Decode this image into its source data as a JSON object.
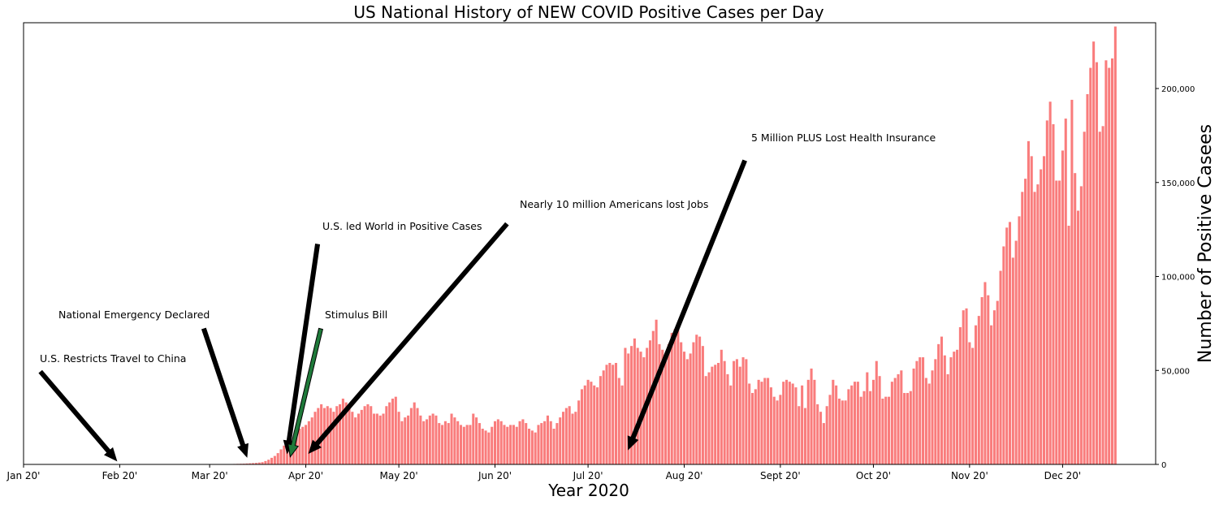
{
  "chart_data": {
    "type": "bar",
    "title": "US National History of NEW COVID Positive Cases per Day",
    "xlabel": "Year 2020",
    "ylabel": "Number of Positive Casees",
    "x_axis": {
      "type": "date",
      "ticks": [
        {
          "date": "2020-01-01",
          "label": "Jan 20'"
        },
        {
          "date": "2020-02-01",
          "label": "Feb 20'"
        },
        {
          "date": "2020-03-01",
          "label": "Mar 20'"
        },
        {
          "date": "2020-04-01",
          "label": "Apr 20'"
        },
        {
          "date": "2020-05-01",
          "label": "May 20'"
        },
        {
          "date": "2020-06-01",
          "label": "Jun 20'"
        },
        {
          "date": "2020-07-01",
          "label": "Jul 20'"
        },
        {
          "date": "2020-08-01",
          "label": "Aug 20'"
        },
        {
          "date": "2020-09-01",
          "label": "Sept 20'"
        },
        {
          "date": "2020-10-01",
          "label": "Oct 20'"
        },
        {
          "date": "2020-11-01",
          "label": "Nov 20'"
        },
        {
          "date": "2020-12-01",
          "label": "Dec 20'"
        }
      ]
    },
    "y_axis": {
      "position": "right",
      "ylim": [
        0,
        235000
      ],
      "ticks": [
        {
          "value": 0,
          "label": "0"
        },
        {
          "value": 50000,
          "label": "50,000"
        },
        {
          "value": 100000,
          "label": "100,000"
        },
        {
          "value": 150000,
          "label": "150,000"
        },
        {
          "value": 200000,
          "label": "200,000"
        }
      ]
    },
    "grid": false,
    "bar_color": "#f97c7c",
    "series": [
      {
        "name": "",
        "start_date": "2020-03-01",
        "values": [
          30,
          40,
          60,
          80,
          100,
          120,
          150,
          200,
          250,
          300,
          350,
          400,
          500,
          600,
          700,
          800,
          1000,
          1200,
          1800,
          2500,
          3500,
          4500,
          6000,
          8000,
          10000,
          11000,
          12000,
          13000,
          17000,
          19000,
          20000,
          21000,
          23000,
          25000,
          28000,
          30000,
          32000,
          30000,
          31000,
          30000,
          28000,
          31000,
          32000,
          35000,
          33000,
          30000,
          28000,
          25000,
          27000,
          29000,
          31000,
          32000,
          31000,
          27000,
          27000,
          26000,
          27000,
          31000,
          33000,
          35000,
          36000,
          28000,
          23000,
          25000,
          26000,
          30000,
          33000,
          30000,
          26000,
          23000,
          24000,
          26000,
          27000,
          26000,
          22000,
          21000,
          23000,
          22000,
          27000,
          25000,
          23000,
          21000,
          20000,
          21000,
          21000,
          27000,
          25000,
          22000,
          19000,
          18000,
          17000,
          20000,
          23000,
          24000,
          23000,
          21000,
          20000,
          21000,
          21000,
          20000,
          23000,
          24000,
          22000,
          19000,
          18000,
          17000,
          21000,
          22000,
          23000,
          26000,
          23000,
          19000,
          22000,
          25000,
          28000,
          30000,
          31000,
          27000,
          28000,
          34000,
          40000,
          42000,
          45000,
          44000,
          42000,
          41000,
          47000,
          50000,
          53000,
          54000,
          53000,
          54000,
          46000,
          42000,
          62000,
          59000,
          63000,
          67000,
          62000,
          60000,
          57000,
          62000,
          66000,
          71000,
          77000,
          64000,
          61000,
          58000,
          64000,
          70000,
          72000,
          75000,
          65000,
          60000,
          56000,
          59000,
          65000,
          69000,
          68000,
          63000,
          47000,
          49000,
          52000,
          53000,
          54000,
          61000,
          55000,
          48000,
          42000,
          55000,
          56000,
          52000,
          57000,
          56000,
          43000,
          38000,
          40000,
          45000,
          44000,
          46000,
          46000,
          41000,
          36000,
          34000,
          37000,
          44000,
          45000,
          44000,
          43000,
          41000,
          31000,
          42000,
          30000,
          45000,
          51000,
          45000,
          32000,
          28000,
          22000,
          31000,
          37000,
          45000,
          42000,
          35000,
          34000,
          34000,
          40000,
          42000,
          44000,
          44000,
          36000,
          39000,
          49000,
          39000,
          45000,
          55000,
          47000,
          35000,
          36000,
          36000,
          44000,
          46000,
          48000,
          50000,
          38000,
          38000,
          39000,
          51000,
          55000,
          57000,
          57000,
          46000,
          43000,
          50000,
          56000,
          64000,
          68000,
          58000,
          48000,
          57000,
          60000,
          61000,
          73000,
          82000,
          83000,
          65000,
          62000,
          74000,
          79000,
          89000,
          97000,
          90000,
          74000,
          82000,
          87000,
          103000,
          116000,
          126000,
          129000,
          110000,
          119000,
          132000,
          145000,
          152000,
          172000,
          164000,
          145000,
          149000,
          157000,
          164000,
          183000,
          193000,
          181000,
          151000,
          151000,
          167000,
          184000,
          127000,
          194000,
          155000,
          135000,
          148000,
          177000,
          197000,
          211000,
          225000,
          214000,
          177000,
          180000,
          215000,
          211000,
          216000,
          233000
        ]
      }
    ],
    "annotations": [
      {
        "text": "U.S. Restricts Travel to China",
        "date": "2020-01-31",
        "value": 2000,
        "arrow_color": "#000000"
      },
      {
        "text": "National Emergency Declared",
        "date": "2020-03-13",
        "value": 4000,
        "arrow_color": "#000000"
      },
      {
        "text": "U.S. led World in Positive Cases",
        "date": "2020-03-26",
        "value": 6000,
        "arrow_color": "#000000"
      },
      {
        "text": "Stimulus Bill",
        "date": "2020-03-27",
        "value": 4000,
        "arrow_color": "#1f7a3a"
      },
      {
        "text": "Nearly 10 million Americans lost Jobs",
        "date": "2020-04-02",
        "value": 6000,
        "arrow_color": "#000000"
      },
      {
        "text": "5 Million PLUS Lost Health Insurance",
        "date": "2020-07-14",
        "value": 8000,
        "arrow_color": "#000000"
      }
    ]
  }
}
